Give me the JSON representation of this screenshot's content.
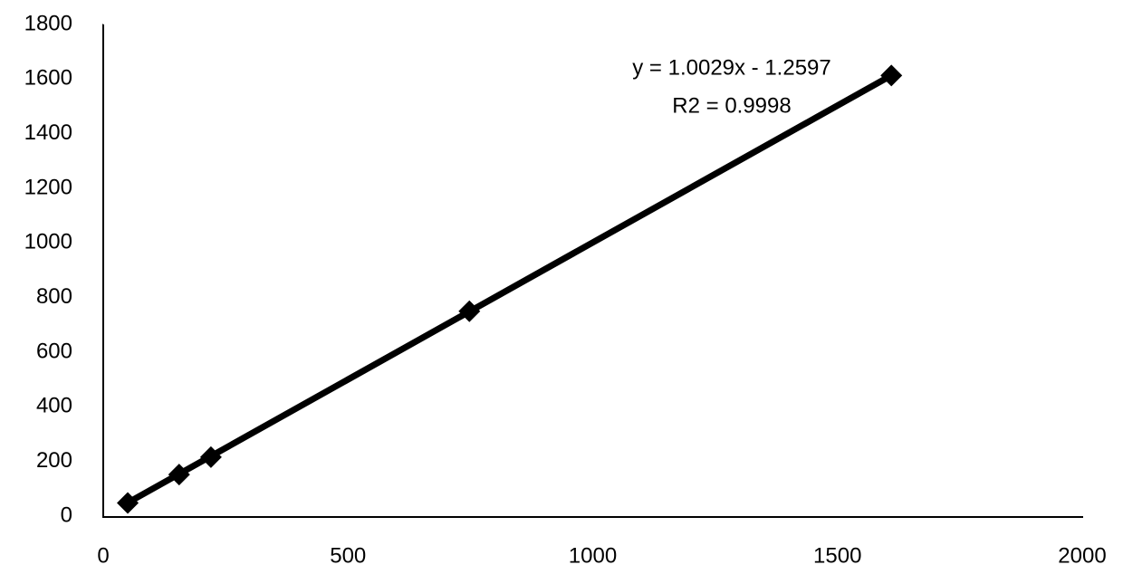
{
  "chart_data": {
    "type": "scatter",
    "x": [
      50,
      155,
      220,
      748,
      1610
    ],
    "values": [
      48,
      152,
      216,
      750,
      1613
    ],
    "color": "#000000",
    "trendline": {
      "slope": 1.0029,
      "intercept": -1.2597
    },
    "annotations": [
      "y = 1.0029x - 1.2597",
      "R2 = 0.9998"
    ],
    "xlim": [
      0,
      2000
    ],
    "xticks": [
      0,
      500,
      1000,
      1500,
      2000
    ],
    "ylim": [
      0,
      1800
    ],
    "yticks": [
      0,
      200,
      400,
      600,
      800,
      1000,
      1200,
      1400,
      1600,
      1800
    ],
    "grid": false
  }
}
